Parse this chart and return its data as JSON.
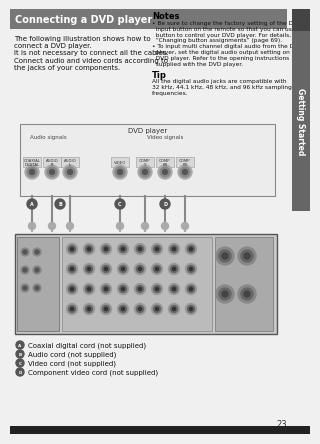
{
  "page_bg": "#f0f0f0",
  "header_text": "Connecting a DVD player",
  "header_text_color": "#ffffff",
  "header_bg": "#777777",
  "body_text_left": "The following illustration shows how to\nconnect a DVD player.\nIt is not necessary to connect all the cables.\nConnect audio and video cords according to\nthe jacks of your components.",
  "notes_title": "Notes",
  "notes_text1": "• Be sure to change the factory setting of the DVD\n  input button on the remote so that you can use the\n  button to control your DVD player. For details, see\n  “Changing button assignments” (page 69).",
  "notes_text2": "• To input multi channel digital audio from the DVD\n  player, set the digital audio output setting on the\n  DVD player. Refer to the opening instructions\n  supplied with the DVD player.",
  "tip_title": "Tip",
  "tip_text": "All the digital audio jacks are compatible with\n32 kHz, 44.1 kHz, 48 kHz, and 96 kHz sampling\nfrequencies.",
  "sidebar_text": "Getting Started",
  "sidebar_bg": "#666666",
  "sidebar_top_bg": "#444444",
  "diagram_label": "DVD player",
  "audio_label": "Audio signals",
  "video_label": "Video signals",
  "legend_A": "● Coaxial digital cord (not supplied)",
  "legend_B": "● Audio cord (not supplied)",
  "legend_C": "● Video cord (not supplied)",
  "legend_D": "● Component video cord (not supplied)",
  "page_num": "23",
  "diagram_bg": "#e0e0e0",
  "diagram_border": "#999999",
  "device_bg": "#c8c8c8",
  "device_dark": "#888888",
  "device_darker": "#555555"
}
